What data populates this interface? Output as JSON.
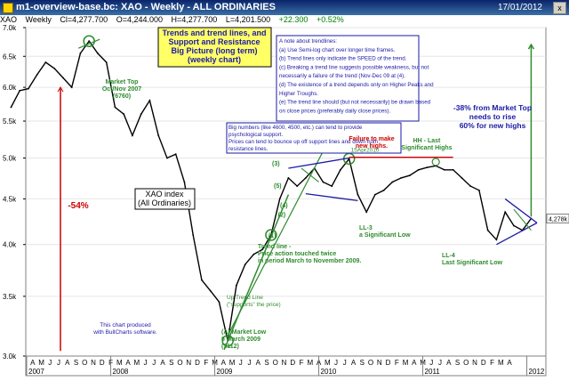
{
  "window": {
    "title": "m1-overview-base.bc: XAO - Weekly - ALL ORDINARIES",
    "date": "17/01/2012",
    "close_glyph": "x"
  },
  "quote": {
    "symbol": "XAO",
    "period": "Weekly",
    "close": "Cl=4,277.700",
    "open": "O=4,244.000",
    "high": "H=4,277.700",
    "low": "L=4,201.500",
    "change": "+22.300",
    "change_pct": "+0.52%"
  },
  "chart_data": {
    "type": "line",
    "scale": "log",
    "ylim": [
      3000,
      7000
    ],
    "y_ticks": [
      "7.0k",
      "6.5k",
      "6.0k",
      "5.5k",
      "5.0k",
      "4.5k",
      "4.0k",
      "3.5k",
      "3.0k"
    ],
    "y_tick_values": [
      7000,
      6500,
      6000,
      5500,
      5000,
      4500,
      4000,
      3500,
      3000
    ],
    "last_price_label": "4,278k",
    "x": [
      "2007-01",
      "2007-02",
      "2007-03",
      "2007-04",
      "2007-05",
      "2007-06",
      "2007-07",
      "2007-08",
      "2007-09",
      "2007-10",
      "2007-11",
      "2007-12",
      "2008-01",
      "2008-02",
      "2008-03",
      "2008-04",
      "2008-05",
      "2008-06",
      "2008-07",
      "2008-08",
      "2008-09",
      "2008-10",
      "2008-11",
      "2008-12",
      "2009-01",
      "2009-02",
      "2009-03",
      "2009-04",
      "2009-05",
      "2009-06",
      "2009-07",
      "2009-08",
      "2009-09",
      "2009-10",
      "2009-11",
      "2009-12",
      "2010-01",
      "2010-02",
      "2010-03",
      "2010-04",
      "2010-05",
      "2010-06",
      "2010-07",
      "2010-08",
      "2010-09",
      "2010-10",
      "2010-11",
      "2010-12",
      "2011-01",
      "2011-02",
      "2011-03",
      "2011-04",
      "2011-05",
      "2011-06",
      "2011-07",
      "2011-08",
      "2011-09",
      "2011-10",
      "2011-11",
      "2011-12",
      "2012-01"
    ],
    "y": [
      5700,
      5950,
      5980,
      6200,
      6400,
      6300,
      6150,
      6000,
      6550,
      6760,
      6550,
      6400,
      5700,
      5600,
      5300,
      5600,
      5800,
      5300,
      5000,
      5050,
      4700,
      4100,
      3650,
      3550,
      3450,
      3120,
      3600,
      3800,
      3900,
      3950,
      4100,
      4500,
      4750,
      4650,
      4750,
      4870,
      4700,
      4650,
      4850,
      4990,
      4550,
      4350,
      4550,
      4600,
      4700,
      4750,
      4780,
      4850,
      4880,
      4900,
      4850,
      4850,
      4750,
      4650,
      4600,
      4150,
      4050,
      4350,
      4200,
      4150,
      4278
    ],
    "month_labels": [
      "A",
      "M",
      "J",
      "J",
      "A",
      "S",
      "O",
      "N",
      "D",
      "F",
      "M",
      "A",
      "M",
      "J",
      "J",
      "A",
      "S",
      "O",
      "N",
      "D",
      "F",
      "M",
      "A",
      "M",
      "J",
      "J",
      "A",
      "S",
      "O",
      "N",
      "D",
      "F",
      "M",
      "A",
      "M",
      "J",
      "J",
      "A",
      "S",
      "O",
      "N",
      "D",
      "F",
      "M",
      "A",
      "M",
      "J",
      "J",
      "A",
      "S",
      "O",
      "N",
      "D",
      "F",
      "M",
      "A"
    ],
    "year_labels": [
      "2007",
      "2008",
      "2009",
      "2010",
      "2011",
      "2012"
    ]
  },
  "annotations": {
    "title_box": [
      "Trends and trend lines, and",
      "Support and Resistance",
      "Big Picture (long term)",
      "(weekly chart)"
    ],
    "note_box": [
      "A note about trendlines:",
      "(a) Use Semi-log chart over longer time frames.",
      "(b) Trend lines only indicate the SPEED of the trend.",
      "(c) Breaking a trend line suggests possible weakness, but not",
      "necessarily a failure of the trend (Nov-Dec 09 at (4).",
      "(d) The existence of a trend depends only on Higher Peaks and",
      "Higher Troughs.",
      "(e) The trend line should (but not necessarily) be drawn based",
      "on close prices (preferably daily close prices)."
    ],
    "big_numbers_box": [
      "Big numbers (like 4600, 4500, etc.) can tend to provide",
      "psychological support.",
      "Prices can tend to bounce up off support lines and down from",
      "resistance lines."
    ],
    "market_top": [
      "Market Top",
      "Oct/Nov 2007",
      "(6760)"
    ],
    "pct_54": "-54%",
    "xao_index": [
      "XAO index",
      "(All Ordinaries)"
    ],
    "bullcharts": [
      "This chart produced",
      "with BullCharts software."
    ],
    "market_low": [
      "(A) Market Low",
      "6 March 2009",
      "(3112)"
    ],
    "uptrend": [
      "Up Trend Line",
      "(\"supports\" the price)"
    ],
    "trend_line_note": [
      "Trend line -",
      "Price action touched twice",
      "in period March to November 2009."
    ],
    "apr2010": "15Apr2010",
    "failure": [
      "Failure to make",
      "new highs."
    ],
    "hh": [
      "HH - Last",
      "Significant Highs"
    ],
    "ll3": [
      "LL-3",
      "a Significant Low"
    ],
    "ll4": [
      "LL-4",
      "Last Significant Low"
    ],
    "rise": [
      "-38% from Market Top",
      "needs to rise",
      "60% for new highs"
    ],
    "labels": [
      "(1)",
      "(2)",
      "(3)",
      "(4)",
      "(5)"
    ]
  },
  "colors": {
    "price_line": "#000000",
    "green": "#2e8b2e",
    "red": "#cc0000",
    "blue": "#1a1aa6",
    "title_box_bg": "#ffff66",
    "plot_bg": "#ffffff"
  }
}
